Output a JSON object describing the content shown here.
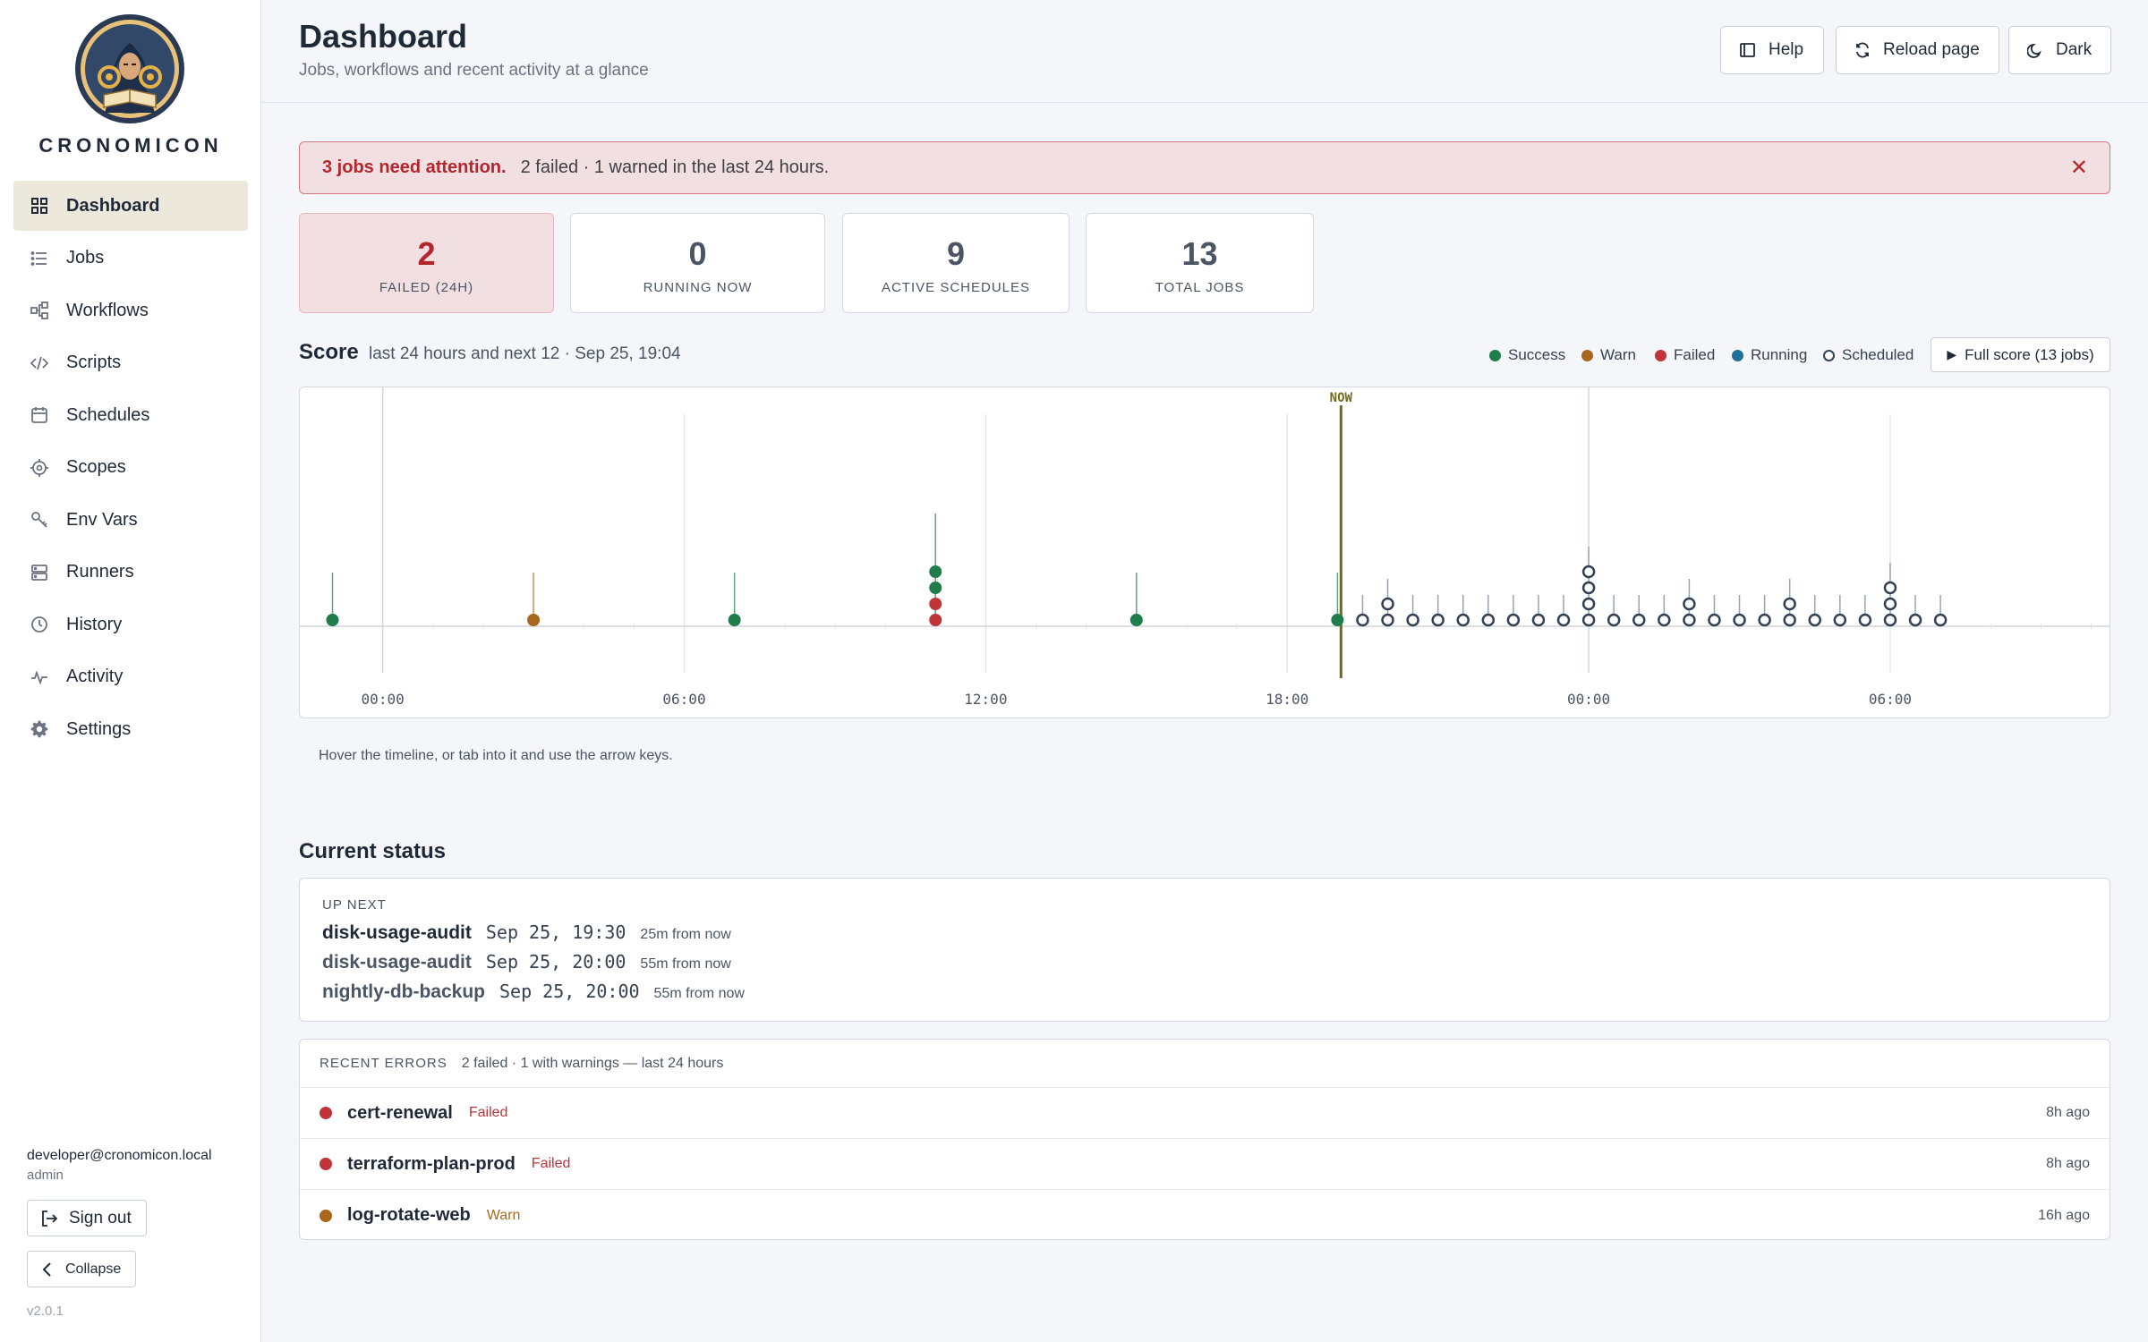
{
  "sidebar": {
    "brand": "CRONOMICON",
    "items": [
      {
        "label": "Dashboard",
        "icon": "dashboard-grid-icon"
      },
      {
        "label": "Jobs",
        "icon": "list-icon"
      },
      {
        "label": "Workflows",
        "icon": "workflow-icon"
      },
      {
        "label": "Scripts",
        "icon": "code-icon"
      },
      {
        "label": "Schedules",
        "icon": "calendar-icon"
      },
      {
        "label": "Scopes",
        "icon": "scope-icon"
      },
      {
        "label": "Env Vars",
        "icon": "key-icon"
      },
      {
        "label": "Runners",
        "icon": "server-icon"
      },
      {
        "label": "History",
        "icon": "clock-icon"
      },
      {
        "label": "Activity",
        "icon": "pulse-icon"
      },
      {
        "label": "Settings",
        "icon": "gear-icon"
      }
    ],
    "active": "Dashboard",
    "user_email": "developer@cronomicon.local",
    "user_role": "admin",
    "sign_out": "Sign out",
    "collapse": "Collapse",
    "version": "v2.0.1"
  },
  "header": {
    "title": "Dashboard",
    "subtitle": "Jobs, workflows and recent activity at a glance",
    "help": "Help",
    "reload": "Reload page",
    "theme": "Dark"
  },
  "alert": {
    "strong": "3 jobs need attention.",
    "text": "2 failed · 1 warned in the last 24 hours."
  },
  "stats": [
    {
      "value": "2",
      "label": "FAILED (24H)"
    },
    {
      "value": "0",
      "label": "RUNNING NOW"
    },
    {
      "value": "9",
      "label": "ACTIVE SCHEDULES"
    },
    {
      "value": "13",
      "label": "TOTAL JOBS"
    }
  ],
  "score": {
    "title": "Score",
    "subtitle": "last 24 hours and next 12 · Sep 25, 19:04",
    "legend": {
      "success": "Success",
      "warn": "Warn",
      "failed": "Failed",
      "running": "Running",
      "scheduled": "Scheduled"
    },
    "full_score": "Full score (13 jobs)",
    "hint": "Hover the timeline, or tab into it and use the arrow keys."
  },
  "colors": {
    "success": "#1e7d4a",
    "warn": "#a8671c",
    "failed": "#c0343a",
    "running": "#1f6f99",
    "scheduled": "#334155",
    "now": "#6f6a1c"
  },
  "chart_data": {
    "type": "scatter",
    "now_label": "NOW",
    "now": 19.07,
    "x_start": -1.65,
    "x_end": 34.4,
    "ticks": [
      {
        "t": 0,
        "label": "00:00"
      },
      {
        "t": 6,
        "label": "06:00"
      },
      {
        "t": 12,
        "label": "12:00"
      },
      {
        "t": 18,
        "label": "18:00"
      },
      {
        "t": 24,
        "label": "00:00"
      },
      {
        "t": 30,
        "label": "06:00"
      }
    ],
    "past_runs": [
      {
        "t": -1.0,
        "runs": [
          "success"
        ]
      },
      {
        "t": 3.0,
        "runs": [
          "warn"
        ]
      },
      {
        "t": 7.0,
        "runs": [
          "success"
        ]
      },
      {
        "t": 11.0,
        "runs": [
          "failed",
          "failed",
          "success",
          "success"
        ]
      },
      {
        "t": 15.0,
        "runs": [
          "success"
        ]
      },
      {
        "t": 19.0,
        "runs": [
          "success"
        ]
      }
    ],
    "scheduled": [
      {
        "t": 19.5,
        "count": 1
      },
      {
        "t": 20.0,
        "count": 2
      },
      {
        "t": 20.5,
        "count": 1
      },
      {
        "t": 21.0,
        "count": 1
      },
      {
        "t": 21.5,
        "count": 1
      },
      {
        "t": 22.0,
        "count": 1
      },
      {
        "t": 22.5,
        "count": 1
      },
      {
        "t": 23.0,
        "count": 1
      },
      {
        "t": 23.5,
        "count": 1
      },
      {
        "t": 24.0,
        "count": 4
      },
      {
        "t": 24.5,
        "count": 1
      },
      {
        "t": 25.0,
        "count": 1
      },
      {
        "t": 25.5,
        "count": 1
      },
      {
        "t": 26.0,
        "count": 2
      },
      {
        "t": 26.5,
        "count": 1
      },
      {
        "t": 27.0,
        "count": 1
      },
      {
        "t": 27.5,
        "count": 1
      },
      {
        "t": 28.0,
        "count": 2
      },
      {
        "t": 28.5,
        "count": 1
      },
      {
        "t": 29.0,
        "count": 1
      },
      {
        "t": 29.5,
        "count": 1
      },
      {
        "t": 30.0,
        "count": 3
      },
      {
        "t": 30.5,
        "count": 1
      },
      {
        "t": 31.0,
        "count": 1
      }
    ]
  },
  "status": {
    "title": "Current status",
    "up_next_label": "UP NEXT",
    "up_next": [
      {
        "name": "disk-usage-audit",
        "time": "Sep 25, 19:30",
        "relative": "25m from now"
      },
      {
        "name": "disk-usage-audit",
        "time": "Sep 25, 20:00",
        "relative": "55m from now"
      },
      {
        "name": "nightly-db-backup",
        "time": "Sep 25, 20:00",
        "relative": "55m from now"
      }
    ],
    "recent_errors_label": "RECENT ERRORS",
    "recent_errors_summary": "2 failed · 1 with warnings — last 24 hours",
    "errors": [
      {
        "name": "cert-renewal",
        "status": "Failed",
        "ago": "8h ago"
      },
      {
        "name": "terraform-plan-prod",
        "status": "Failed",
        "ago": "8h ago"
      },
      {
        "name": "log-rotate-web",
        "status": "Warn",
        "ago": "16h ago"
      }
    ]
  }
}
